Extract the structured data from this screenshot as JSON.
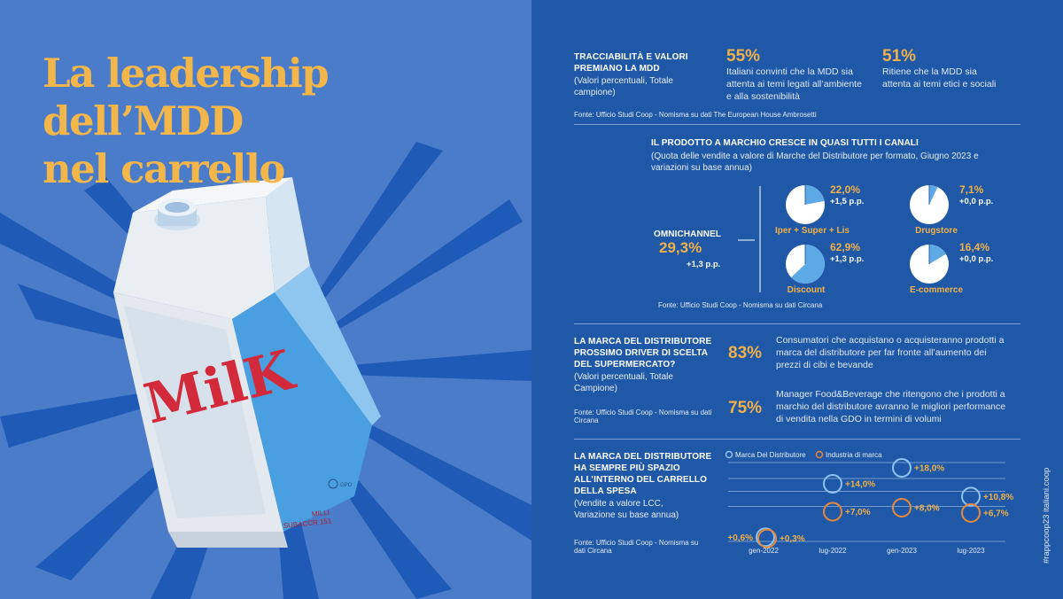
{
  "title": {
    "line1": "La leadership dell’MDD",
    "line2": "nel carrello"
  },
  "carton": {
    "brand": "MilK",
    "small_line1": "MILLI",
    "small_line2": "SUBACCR 151",
    "logo": "GPO"
  },
  "section1": {
    "heading_line1": "TRACCIABILITÀ E VALORI",
    "heading_line2": "PREMIANO LA MDD",
    "sub_line1": "(Valori percentuali, Totale",
    "sub_line2": "campione)",
    "stat1": {
      "value": "55%",
      "desc_line1": "Italiani convinti che la MDD sia",
      "desc_line2": "attenta ai temi legati all’ambiente",
      "desc_line3": "e alla sostenibilità"
    },
    "stat2": {
      "value": "51%",
      "desc_line1": "Ritiene che la MDD sia",
      "desc_line2": "attenta ai temi etici e sociali"
    },
    "source": "Fonte: Ufficio Studi Coop - Nomisma su dati The European House Ambrosetti"
  },
  "section2": {
    "heading": "IL PRODOTTO A MARCHIO CRESCE IN QUASI TUTTI I CANALI",
    "sub_line1": "(Quota delle vendite a valore di Marche del Distributore per formato, Giugno 2023 e",
    "sub_line2": "variazioni su base annua)",
    "omni": {
      "label": "OMNICHANNEL",
      "value": "29,3%",
      "var": "+1,3 p.p."
    },
    "source": "Fonte: Ufficio Studi Coop - Nomisma su dati Circana"
  },
  "section3": {
    "heading_line1": "LA MARCA DEL DISTRIBUTORE",
    "heading_line2": "PROSSIMO DRIVER DI SCELTA",
    "heading_line3": "DEL SUPERMERCATO?",
    "sub_line1": "(Valori percentuali, Totale",
    "sub_line2": "Campione)",
    "source_line1": "Fonte: Ufficio Studi Coop - Nomisma su dati",
    "source_line2": "Circana",
    "stat1": {
      "value": "83%",
      "desc_line1": "Consumatori che acquistano o acquisteranno prodotti a",
      "desc_line2": "marca del distributore per far fronte all’aumento dei",
      "desc_line3": "prezzi di cibi e bevande"
    },
    "stat2": {
      "value": "75%",
      "desc_line1": "Manager Food&Beverage che ritengono che i prodotti a",
      "desc_line2": "marchio del distributore avranno le migliori performance",
      "desc_line3": "di vendita nella GDO in termini di volumi"
    }
  },
  "section4": {
    "heading_line1": "LA MARCA DEL DISTRIBUTORE",
    "heading_line2": "HA SEMPRE PIÙ SPAZIO",
    "heading_line3": "ALL’INTERNO DEL CARRELLO",
    "heading_line4": "DELLA SPESA",
    "sub_line1": "(Vendite a valore LCC,",
    "sub_line2": "Variazione su base annua)",
    "source_line1": "Fonte: Ufficio Studi Coop - Nomisma su",
    "source_line2": "dati Circana"
  },
  "vertical_text": "#rappcoop23 italiani.coop",
  "colors": {
    "mdd": "#8fc3ee",
    "industria": "#e8883a",
    "accent": "#f0b04a"
  },
  "chart_data": [
    {
      "type": "pie",
      "categories": [
        "Iper + Super + Lis",
        "Drugstore",
        "Discount",
        "E-commerce"
      ],
      "values": [
        22.0,
        7.1,
        62.9,
        16.4
      ],
      "labels": [
        "22,0%",
        "7,1%",
        "62,9%",
        "16,4%"
      ],
      "variations": [
        "+1,5 p.p.",
        "+0,0 p.p.",
        "+1,3 p.p.",
        "+0,0 p.p."
      ]
    },
    {
      "type": "scatter",
      "x": [
        "gen-2022",
        "lug-2022",
        "gen-2023",
        "lug-2023"
      ],
      "series": [
        {
          "name": "Marca Del Distributore",
          "values": [
            0.6,
            14.0,
            18.0,
            10.8
          ],
          "labels": [
            "+0,6%",
            "+14,0%",
            "+18,0%",
            "+10,8%"
          ]
        },
        {
          "name": "Industria di marca",
          "values": [
            0.3,
            7.0,
            8.0,
            6.7
          ],
          "labels": [
            "+0,3%",
            "+7,0%",
            "+8,0%",
            "+6,7%"
          ]
        }
      ]
    }
  ]
}
